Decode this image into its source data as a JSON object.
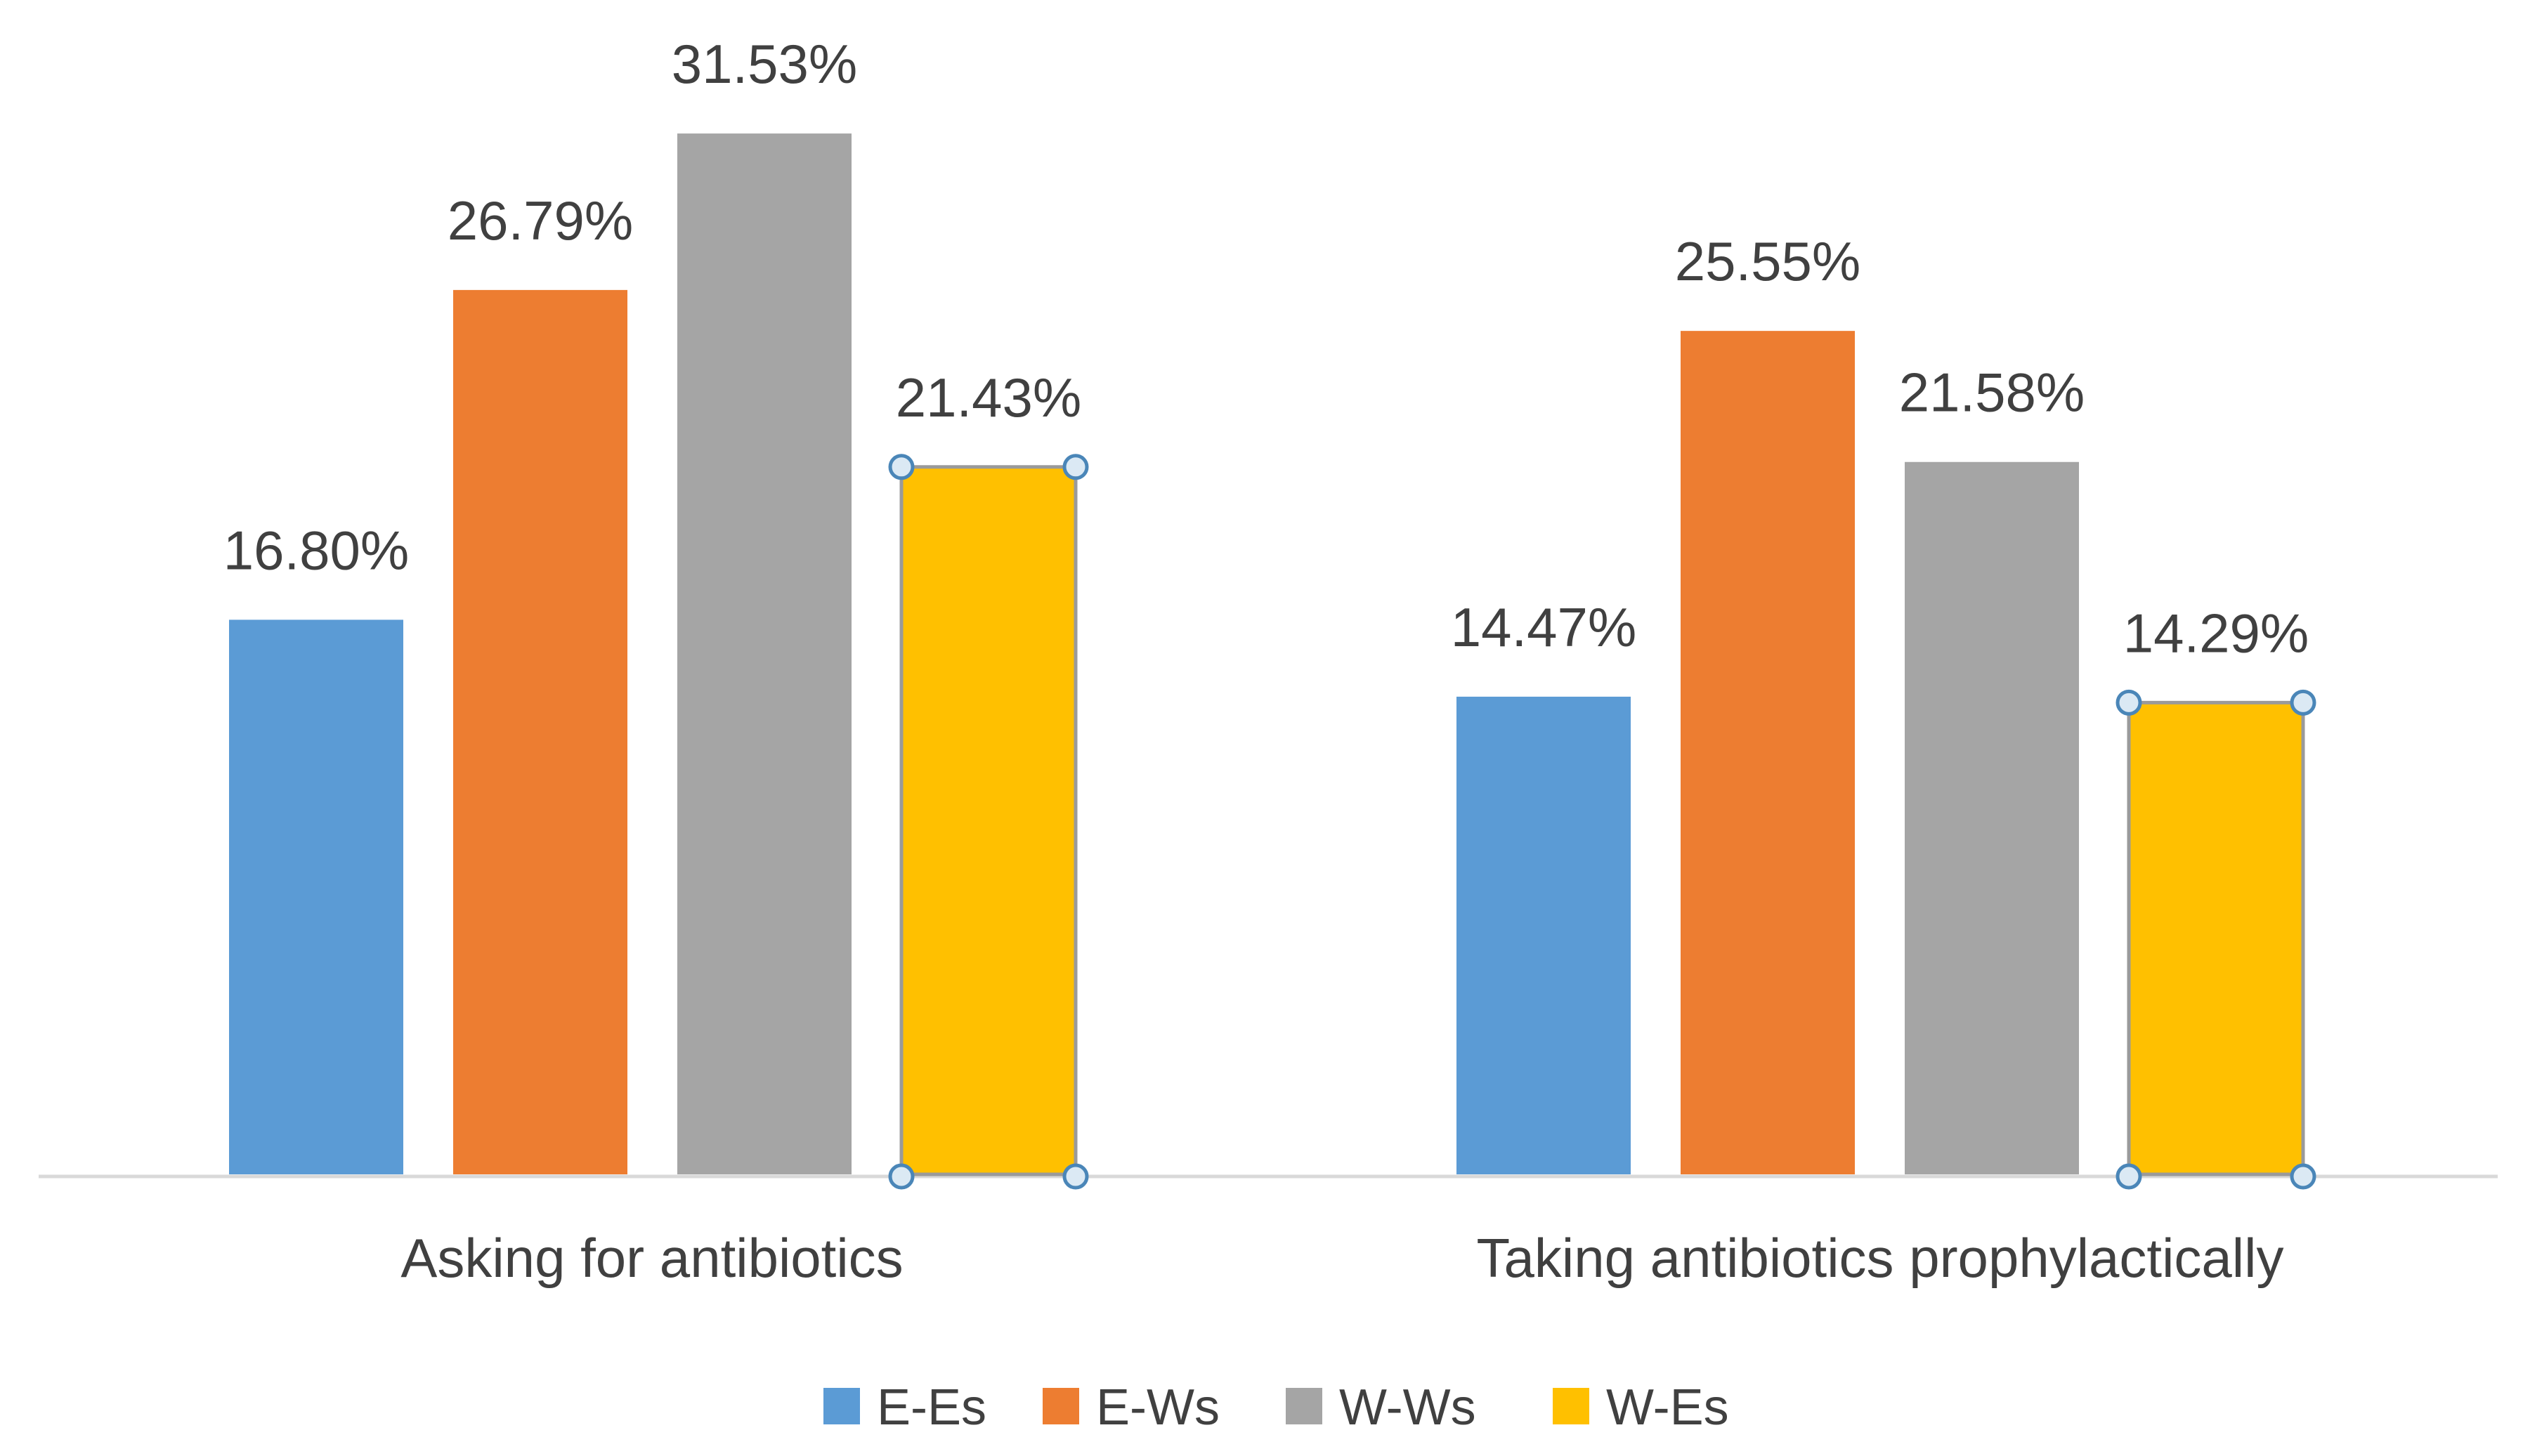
{
  "chart_data": {
    "type": "bar",
    "title": "",
    "xlabel": "",
    "ylabel": "",
    "ylim": [
      0,
      35
    ],
    "grid": false,
    "legend_position": "bottom",
    "categories": [
      "Asking for antibiotics",
      "Taking antibiotics prophylactically"
    ],
    "series": [
      {
        "name": "E-Es",
        "color": "#5b9bd5",
        "values": [
          16.8,
          14.47
        ],
        "labels": [
          "16.80%",
          "14.47%"
        ]
      },
      {
        "name": "E-Ws",
        "color": "#ed7d31",
        "values": [
          26.79,
          25.55
        ],
        "labels": [
          "26.79%",
          "25.55%"
        ]
      },
      {
        "name": "W-Ws",
        "color": "#a5a5a5",
        "values": [
          31.53,
          21.58
        ],
        "labels": [
          "31.53%",
          "21.58%"
        ]
      },
      {
        "name": "W-Es",
        "color": "#ffc000",
        "values": [
          21.43,
          14.29
        ],
        "labels": [
          "21.43%",
          "14.29%"
        ],
        "selected": true
      }
    ]
  }
}
